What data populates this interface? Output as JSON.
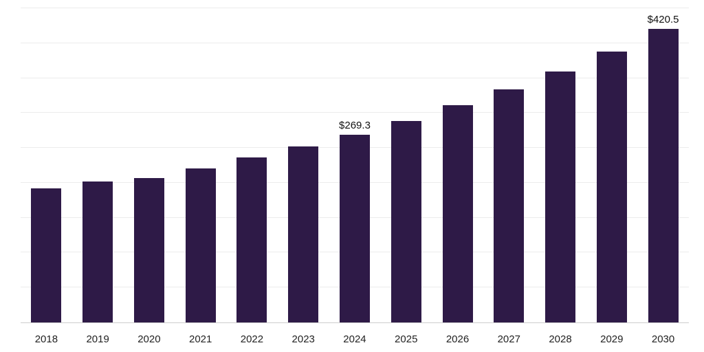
{
  "chart_data": {
    "type": "bar",
    "categories": [
      "2018",
      "2019",
      "2020",
      "2021",
      "2022",
      "2023",
      "2024",
      "2025",
      "2026",
      "2027",
      "2028",
      "2029",
      "2030"
    ],
    "values": [
      192,
      202,
      207,
      221,
      236,
      252,
      269.3,
      289,
      311,
      334,
      359,
      388,
      420.5
    ],
    "labeled_points": [
      {
        "category": "2024",
        "label": "$269.3"
      },
      {
        "category": "2030",
        "label": "$420.5"
      }
    ],
    "title": "",
    "xlabel": "",
    "ylabel": "",
    "ylim": [
      0,
      450
    ],
    "grid_step": 50,
    "grid": true,
    "legend": false,
    "bar_color": "#2e1a47",
    "label_color": "#111111",
    "gridline_color": "#ececec",
    "axis_line_color": "#cccccc",
    "background": "#ffffff"
  }
}
